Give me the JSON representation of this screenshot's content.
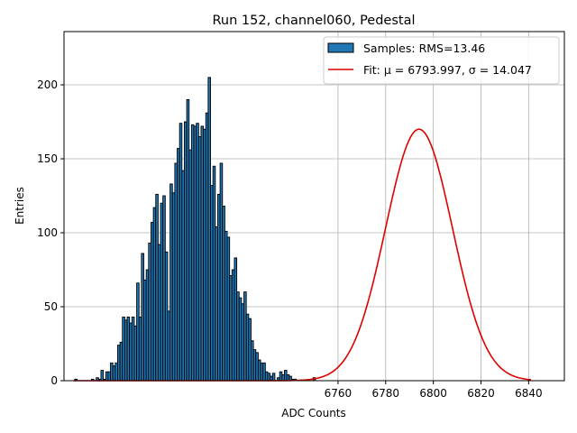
{
  "colors": {
    "bar_fill": "#1f77b4",
    "bar_edge": "#000000",
    "fit_line": "#e00000",
    "grid": "#b0b0b0"
  },
  "chart_data": {
    "type": "bar",
    "title": "Run 152, channel060, Pedestal",
    "xlabel": "ADC Counts",
    "ylabel": "Entries",
    "xlim": [
      6645,
      6855
    ],
    "ylim": [
      0,
      236
    ],
    "xticks": [
      6760,
      6780,
      6800,
      6820,
      6840
    ],
    "yticks": [
      0,
      50,
      100,
      150,
      200
    ],
    "grid": true,
    "legend_position": "top-right",
    "legend": {
      "samples_label": "Samples: RMS=13.46",
      "fit_label": "Fit: μ = 6793.997, σ = 14.047"
    },
    "histogram": {
      "name": "Samples",
      "bin_start": 6650,
      "bin_width": 1,
      "counts": [
        1,
        0,
        0,
        0,
        0,
        0,
        0,
        1,
        0,
        2,
        1,
        7,
        1,
        6,
        6,
        12,
        10,
        12,
        24,
        26,
        43,
        41,
        43,
        39,
        43,
        37,
        66,
        43,
        86,
        68,
        75,
        93,
        107,
        117,
        126,
        92,
        120,
        125,
        87,
        47,
        133,
        127,
        147,
        157,
        174,
        142,
        175,
        190,
        156,
        173,
        172,
        174,
        165,
        172,
        170,
        181,
        205,
        132,
        145,
        104,
        126,
        147,
        118,
        101,
        97,
        71,
        75,
        83,
        60,
        56,
        52,
        60,
        45,
        42,
        27,
        21,
        19,
        14,
        12,
        12,
        6,
        5,
        3,
        5,
        0,
        2,
        6,
        4,
        7,
        4,
        3,
        1,
        1,
        0,
        0,
        0,
        0,
        0,
        0,
        0,
        2
      ]
    },
    "fit": {
      "name": "Fit",
      "function": "gaussian",
      "mu": 6793.997,
      "sigma": 14.047,
      "amplitude": 170,
      "x_range": [
        6649,
        6841
      ]
    }
  }
}
